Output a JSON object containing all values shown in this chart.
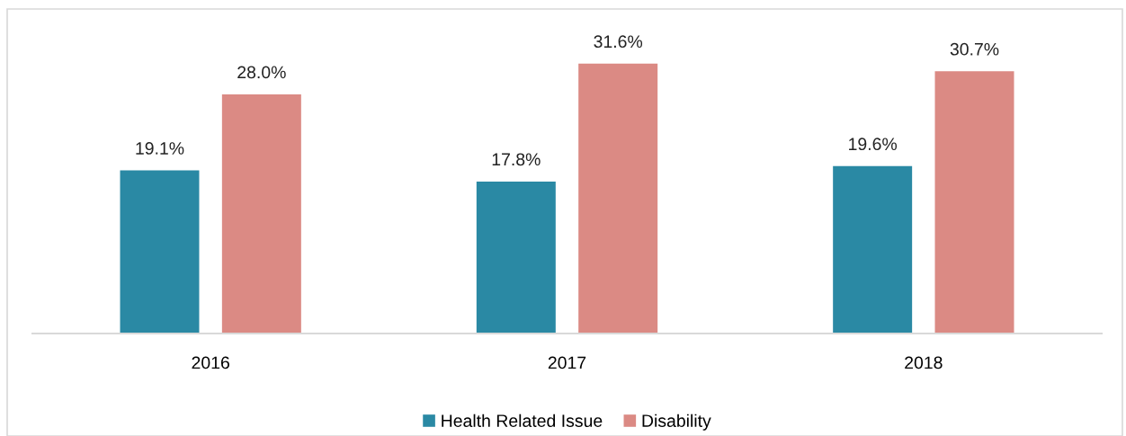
{
  "chart_data": {
    "type": "bar",
    "categories": [
      "2016",
      "2017",
      "2018"
    ],
    "series": [
      {
        "name": "Health Related Issue",
        "color": "#2a89a4",
        "values": [
          19.1,
          17.8,
          19.6
        ],
        "value_labels": [
          "19.1%",
          "17.8%",
          "19.6%"
        ]
      },
      {
        "name": "Disability",
        "color": "#db8a84",
        "values": [
          28.0,
          31.6,
          30.7
        ],
        "value_labels": [
          "28.0%",
          "31.6%",
          "30.7%"
        ]
      }
    ],
    "ylim": [
      0,
      38
    ],
    "tick_labels": "x",
    "legend": "bottom"
  }
}
